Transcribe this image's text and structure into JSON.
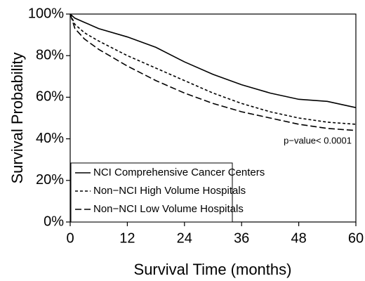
{
  "chart_data": {
    "type": "line",
    "x_label": "Survival Time (months)",
    "y_label": "Survival Probability",
    "annotation": "p−value< 0.0001",
    "x": [
      0,
      1,
      3,
      6,
      12,
      18,
      24,
      30,
      36,
      42,
      48,
      54,
      60
    ],
    "series": [
      {
        "name": "NCI Comprehensive Cancer Centers",
        "color": "#000000",
        "linestyle": "solid",
        "values": [
          100,
          98,
          96,
          93,
          89,
          84,
          77,
          71,
          66,
          62,
          59,
          58,
          55
        ]
      },
      {
        "name": "Non−NCI High Volume Hospitals",
        "color": "#000000",
        "linestyle": "short-dash",
        "values": [
          100,
          95,
          91,
          87,
          80,
          74,
          68,
          62,
          57,
          53,
          50,
          48,
          47
        ]
      },
      {
        "name": "Non−NCI Low Volume Hospitals",
        "color": "#000000",
        "linestyle": "long-dash",
        "values": [
          100,
          93,
          88,
          83,
          75,
          68,
          62,
          57,
          53,
          50,
          47,
          45,
          44
        ]
      }
    ],
    "xlim": [
      0,
      60
    ],
    "xticks": [
      0,
      12,
      24,
      36,
      48,
      60
    ],
    "ylim": [
      0,
      100
    ],
    "yticks": [
      {
        "value": 0,
        "label": "0%"
      },
      {
        "value": 20,
        "label": "20%"
      },
      {
        "value": 40,
        "label": "40%"
      },
      {
        "value": 60,
        "label": "60%"
      },
      {
        "value": 80,
        "label": "80%"
      },
      {
        "value": 100,
        "label": "100%"
      }
    ],
    "grid": false,
    "legend": "lower left"
  }
}
